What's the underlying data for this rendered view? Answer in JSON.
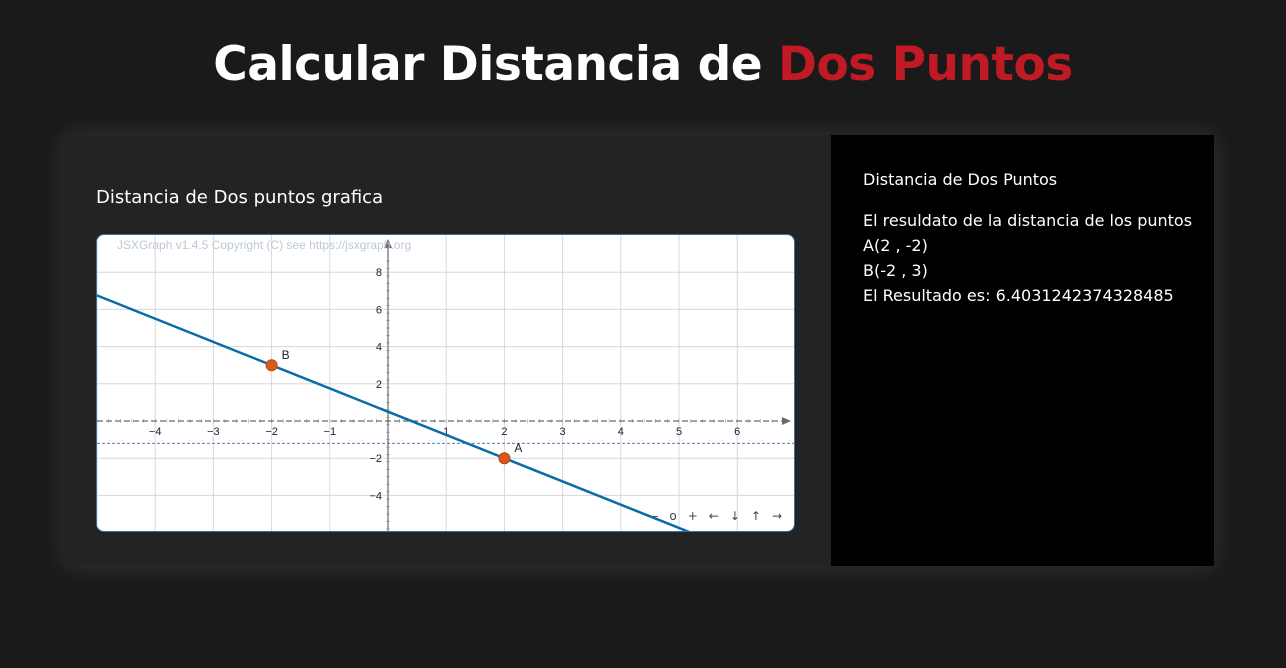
{
  "page": {
    "title_main": "Calcular Distancia de",
    "title_accent": "Dos Puntos",
    "accent_color": "#c01a24"
  },
  "graph": {
    "heading": "Distancia de Dos puntos grafica",
    "copyright": "JSXGraph v1.4.5 Copyright (C) see https://jsxgraph.org",
    "nav_controls": [
      "–",
      "o",
      "+",
      "←",
      "↓",
      "↑",
      "→"
    ],
    "x_ticks": [
      "−4",
      "−3",
      "−2",
      "−1",
      "1",
      "2",
      "3",
      "4",
      "5",
      "6"
    ],
    "y_ticks": [
      "8",
      "6",
      "4",
      "2",
      "−2",
      "−4"
    ]
  },
  "chart_data": {
    "type": "scatter",
    "points": [
      {
        "label": "A",
        "x": 2,
        "y": -2
      },
      {
        "label": "B",
        "x": -2,
        "y": 3
      }
    ],
    "line": {
      "through": [
        "A",
        "B"
      ],
      "slope": -1.25,
      "intercept": 0.5
    },
    "horizontal_reference_y": -1.2,
    "xlim": [
      -5,
      7
    ],
    "ylim": [
      -6,
      8.5
    ],
    "grid": true,
    "colors": {
      "line": "#0a6bab",
      "points": "#d9581a",
      "grid": "#d8d8d8",
      "axis": "#6b6b6b"
    }
  },
  "result": {
    "heading": "Distancia de Dos Puntos",
    "description": "El resuldato de la distancia de los puntos",
    "point_a": "A(2 , -2)",
    "point_b": "B(-2 , 3)",
    "result_line": "El Resultado es: 6.4031242374328485"
  }
}
